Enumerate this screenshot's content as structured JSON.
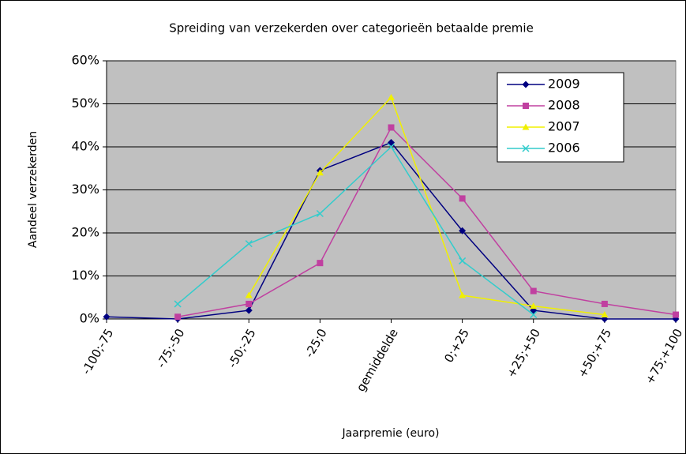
{
  "chart_data": {
    "type": "line",
    "title": "Spreiding van verzekerden over categorieën betaalde premie",
    "xlabel": "Jaarpremie (euro)",
    "ylabel": "Aandeel verzekerden",
    "categories": [
      "-100;-75",
      "-75;-50",
      "-50;-25",
      "-25;0",
      "gemiddelde",
      "0;+25",
      "+25;+50",
      "+50;+75",
      "+75;+100"
    ],
    "series": [
      {
        "name": "2009",
        "color": "#000080",
        "marker": "diamond",
        "values": [
          0.5,
          0,
          2,
          34.5,
          41,
          20.5,
          2,
          0,
          0
        ]
      },
      {
        "name": "2008",
        "color": "#c040a0",
        "marker": "square",
        "values": [
          null,
          0.5,
          3.5,
          13,
          44.5,
          28,
          6.5,
          3.5,
          1
        ]
      },
      {
        "name": "2007",
        "color": "#f0f000",
        "marker": "triangle",
        "values": [
          null,
          null,
          5.5,
          34,
          51.5,
          5.5,
          3,
          1,
          null
        ]
      },
      {
        "name": "2006",
        "color": "#33cccc",
        "marker": "x",
        "values": [
          null,
          3.5,
          17.5,
          24.5,
          40,
          13.5,
          1,
          null,
          null
        ]
      }
    ],
    "ylim": [
      0,
      60
    ],
    "yticks": [
      {
        "value": 0,
        "label": "0%"
      },
      {
        "value": 10,
        "label": "10%"
      },
      {
        "value": 20,
        "label": "20%"
      },
      {
        "value": 30,
        "label": "30%"
      },
      {
        "value": 40,
        "label": "40%"
      },
      {
        "value": 50,
        "label": "50%"
      },
      {
        "value": 60,
        "label": "60%"
      }
    ],
    "grid": true,
    "legend": "upper right"
  }
}
